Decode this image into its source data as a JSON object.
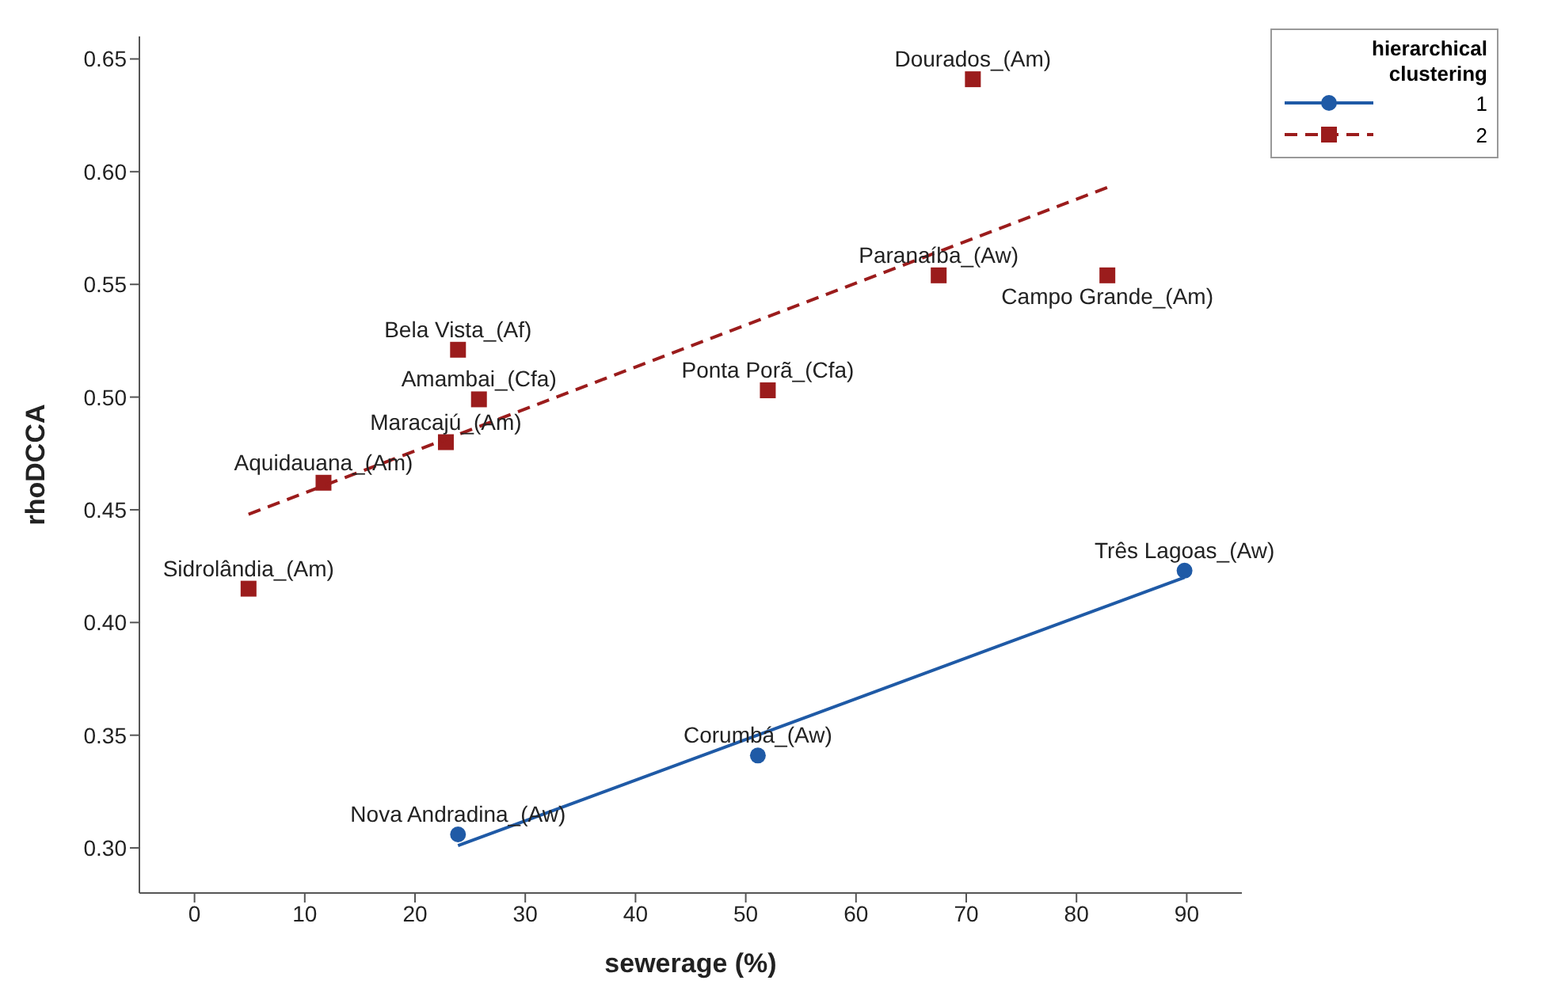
{
  "chart_data": {
    "type": "scatter",
    "xlabel": "sewerage (%)",
    "ylabel": "rhoDCCA",
    "legend_title": "hierarchical clustering",
    "legend": "top right",
    "xlim": [
      -5,
      95
    ],
    "xticks": [
      0,
      10,
      20,
      30,
      40,
      50,
      60,
      70,
      80,
      90
    ],
    "ylim": [
      0.28,
      0.66
    ],
    "yticks": [
      {
        "value": 0.3,
        "label": "0.30"
      },
      0.35,
      {
        "value": 0.4,
        "label": "0.40"
      },
      0.45,
      {
        "value": 0.5,
        "label": "0.50"
      },
      0.55,
      {
        "value": 0.6,
        "label": "0.60"
      },
      0.65
    ],
    "series": [
      {
        "name": "1",
        "color": "#1f5aa6",
        "marker": "circle",
        "line_style": "solid",
        "x": [
          23.9,
          51.1,
          89.8
        ],
        "values": [
          0.306,
          0.341,
          0.423
        ]
      },
      {
        "name": "2",
        "color": "#9b1c1c",
        "marker": "square",
        "line_style": "dashed",
        "x": [
          70.6,
          67.5,
          82.8,
          23.9,
          25.8,
          52,
          22.8,
          11.7,
          4.9
        ],
        "values": [
          0.641,
          0.554,
          0.554,
          0.521,
          0.499,
          0.503,
          0.48,
          0.462,
          0.415
        ]
      },
      {
        "type": "line",
        "color": "#1f5aa6",
        "line_style": "solid",
        "x": [
          23.9,
          89.8
        ],
        "values": [
          0.301,
          0.42
        ]
      },
      {
        "type": "line",
        "color": "#9b1c1c",
        "line_style": "dashed",
        "x": [
          4.9,
          82.8
        ],
        "values": [
          0.448,
          0.593
        ]
      }
    ],
    "annotations": [
      {
        "text": "Dourados_(Am)",
        "x": 70.6,
        "y": 0.641
      },
      {
        "text": "Paranaíba_(Aw)",
        "x": 67.5,
        "y": 0.554
      },
      {
        "text": "Campo Grande_(Am)",
        "x": 82.8,
        "y": 0.554
      },
      {
        "text": "Bela Vista_(Af)",
        "x": 23.9,
        "y": 0.521
      },
      {
        "text": "Amambai_(Cfa)",
        "x": 25.8,
        "y": 0.499
      },
      {
        "text": "Ponta Porã_(Cfa)",
        "x": 52,
        "y": 0.503
      },
      {
        "text": "Maracajú_(Am)",
        "x": 22.8,
        "y": 0.48
      },
      {
        "text": "Aquidauana_(Am)",
        "x": 11.7,
        "y": 0.462
      },
      {
        "text": "Sidrolândia_(Am)",
        "x": 4.9,
        "y": 0.415
      },
      {
        "text": "Nova Andradina_(Aw)",
        "x": 23.9,
        "y": 0.306
      },
      {
        "text": "Corumbá_(Aw)",
        "x": 51.1,
        "y": 0.341
      },
      {
        "text": "Três Lagoas_(Aw)",
        "x": 89.8,
        "y": 0.423
      }
    ]
  }
}
